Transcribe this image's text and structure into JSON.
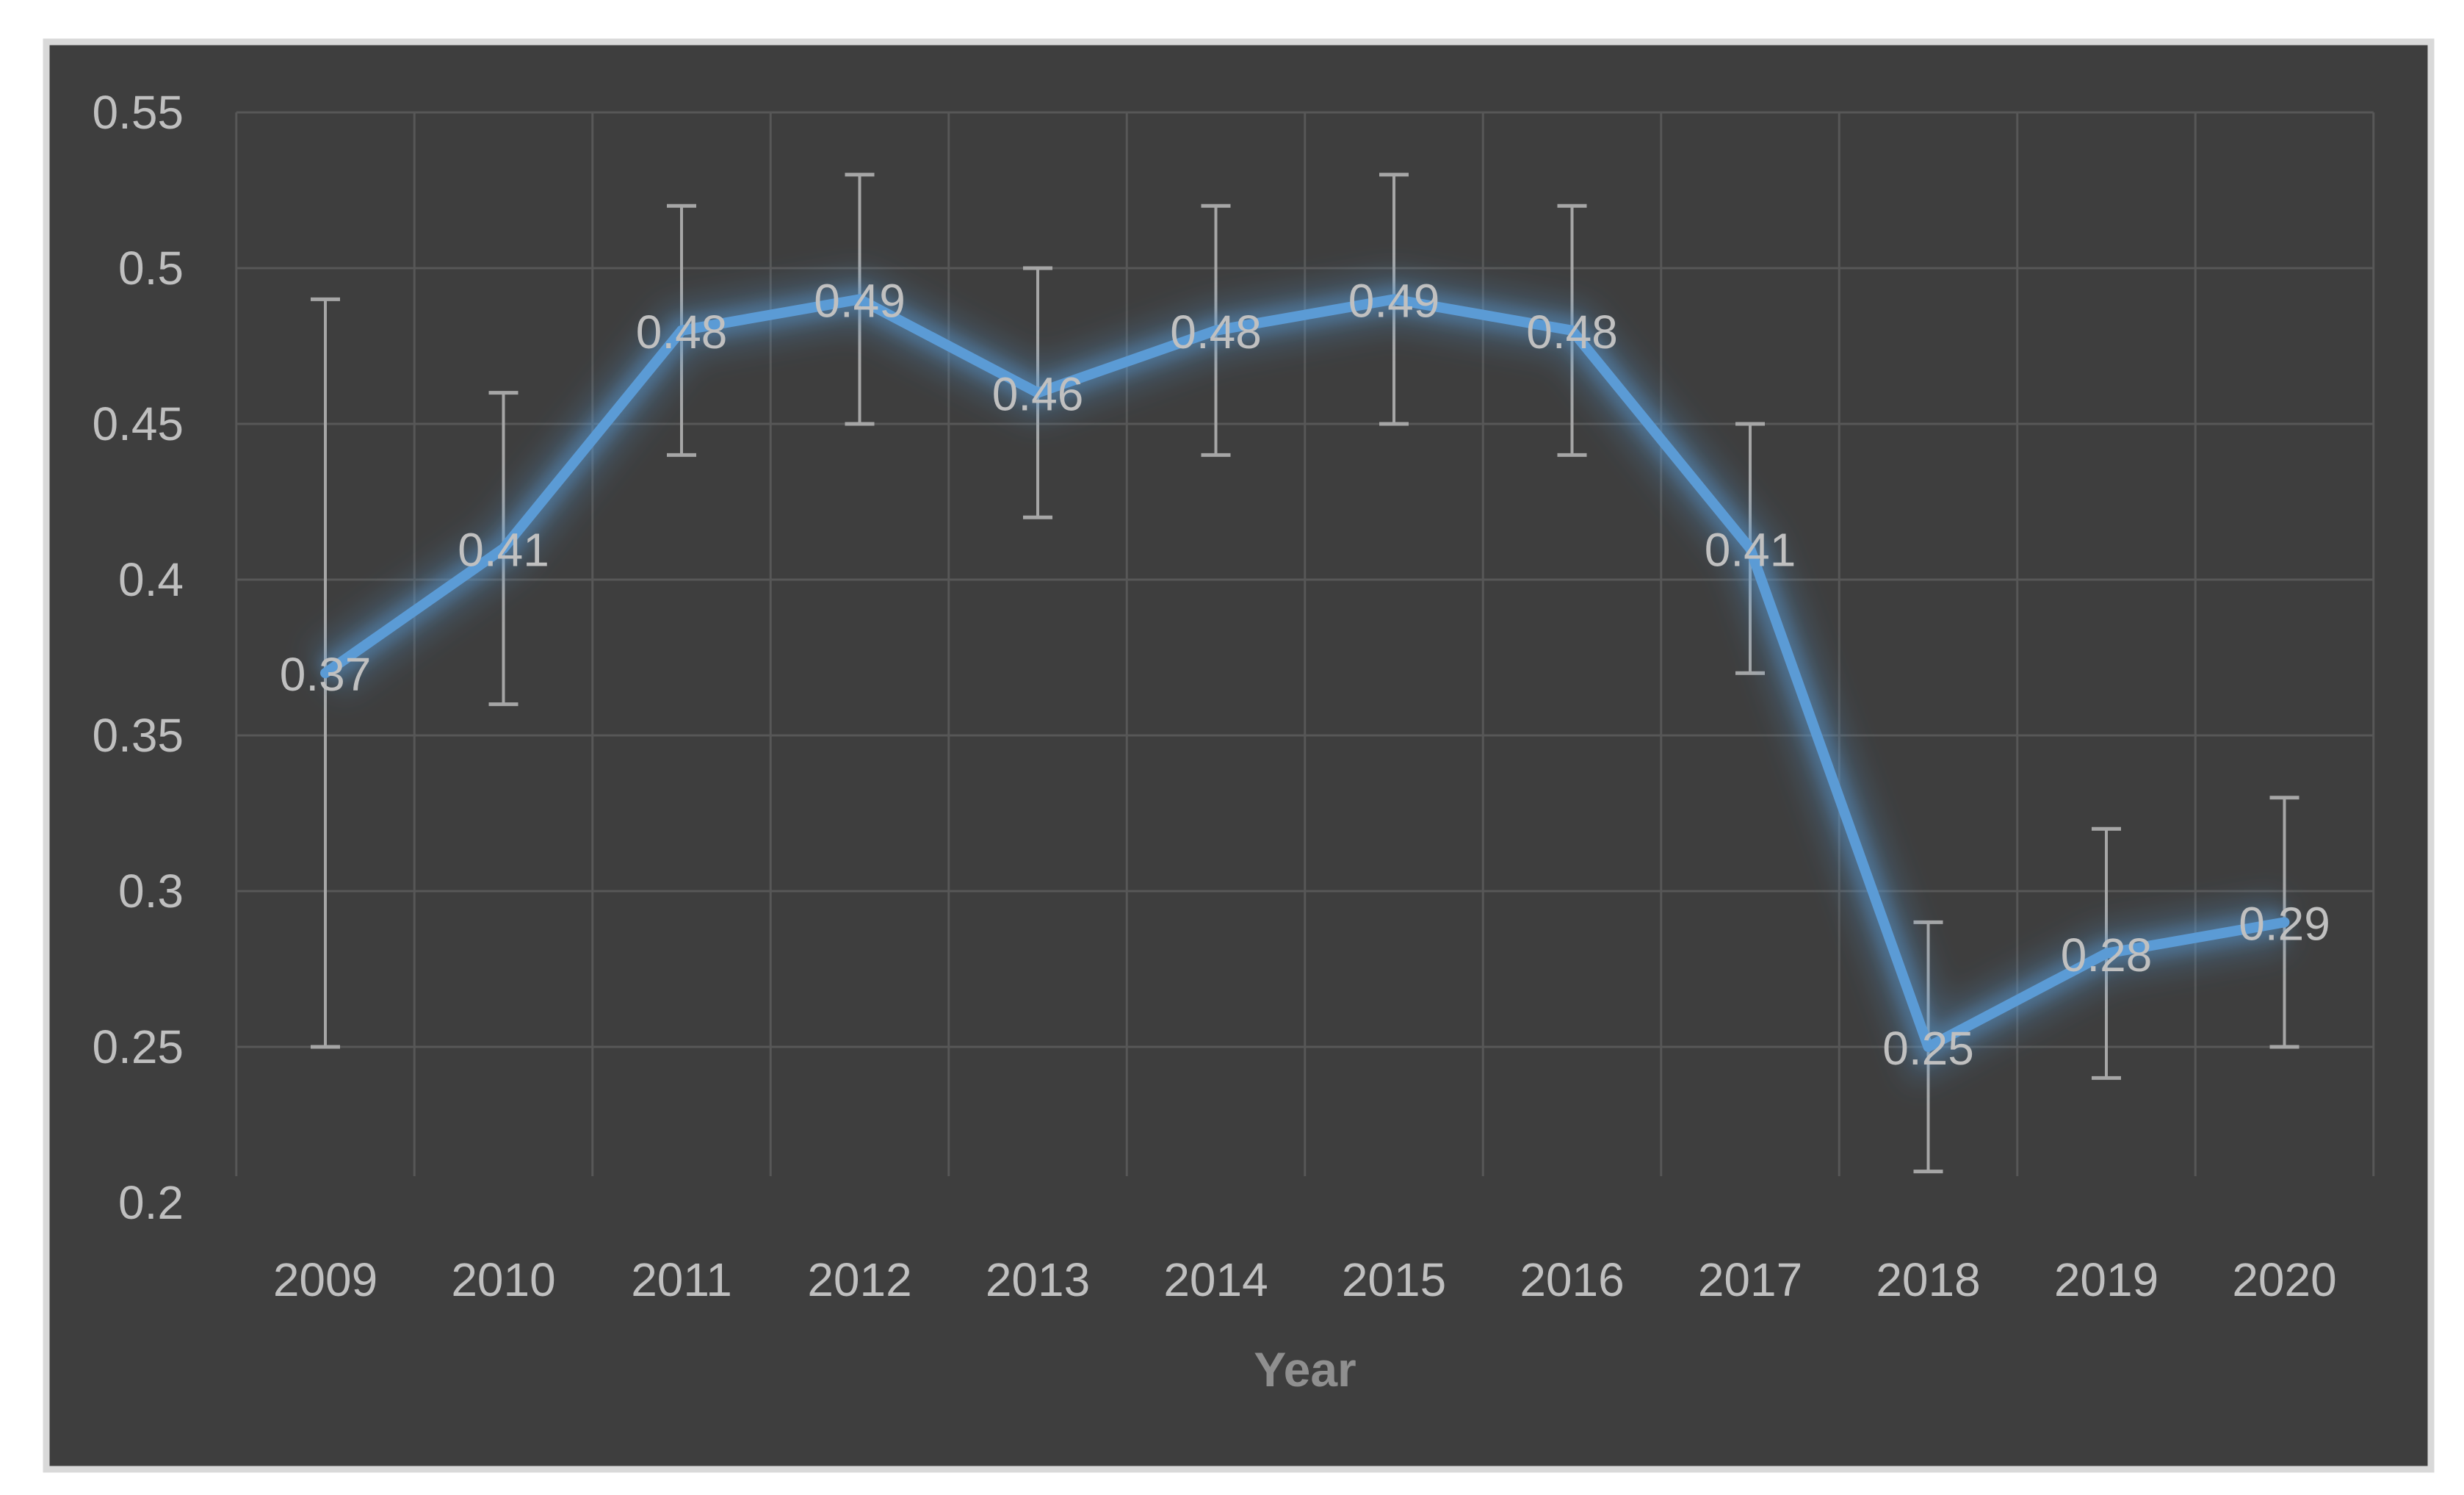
{
  "chart_data": {
    "type": "line",
    "title": "",
    "xlabel": "Year",
    "ylabel": "",
    "categories": [
      "2009",
      "2010",
      "2011",
      "2012",
      "2013",
      "2014",
      "2015",
      "2016",
      "2017",
      "2018",
      "2019",
      "2020"
    ],
    "series": [
      {
        "name": "",
        "values": [
          0.37,
          0.41,
          0.48,
          0.49,
          0.46,
          0.48,
          0.49,
          0.48,
          0.41,
          0.25,
          0.28,
          0.29
        ],
        "data_labels": [
          "0.37",
          "0.41",
          "0.48",
          "0.49",
          "0.46",
          "0.48",
          "0.49",
          "0.48",
          "0.41",
          "0.25",
          "0.28",
          "0.29"
        ],
        "error_plus": [
          0.12,
          0.05,
          0.04,
          0.04,
          0.04,
          0.04,
          0.04,
          0.04,
          0.04,
          0.04,
          0.04,
          0.04
        ],
        "error_minus": [
          0.12,
          0.05,
          0.04,
          0.04,
          0.04,
          0.04,
          0.04,
          0.04,
          0.04,
          0.04,
          0.04,
          0.04
        ]
      }
    ],
    "y_ticks": [
      {
        "label": "0.55",
        "value": 0.55
      },
      {
        "label": "0.5",
        "value": 0.5
      },
      {
        "label": "0.45",
        "value": 0.45
      },
      {
        "label": "0.4",
        "value": 0.4
      },
      {
        "label": "0.35",
        "value": 0.35
      },
      {
        "label": "0.3",
        "value": 0.3
      },
      {
        "label": "0.25",
        "value": 0.25
      },
      {
        "label": "0.2",
        "value": 0.2
      }
    ],
    "ylim": [
      0.2,
      0.55
    ],
    "grid": true,
    "legend_position": "none",
    "colors": {
      "page_background": "#ffffff",
      "chart_background": "#3E3E3E",
      "chart_border": "#D9D9D9",
      "gridline": "#575757",
      "line": "#5B9BD5",
      "line_glow": "#5B9BD5",
      "error_bar": "#A6A6A6",
      "data_label": "#C0C0C0",
      "tick_label": "#BFBFBF",
      "axis_title": "#8F8F8F"
    }
  }
}
